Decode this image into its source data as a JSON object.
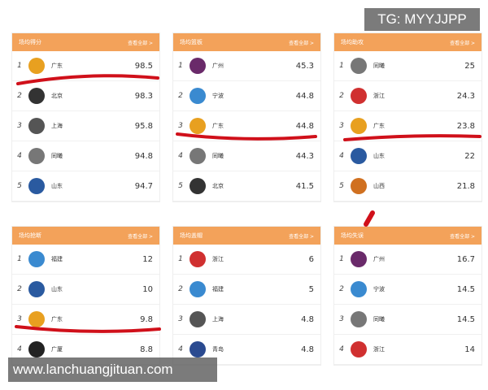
{
  "panels": [
    {
      "title": "场均得分",
      "more": "查看全部 >",
      "rows": [
        [
          "1",
          "广东",
          "98.5",
          "#e8a020"
        ],
        [
          "2",
          "北京",
          "98.3",
          "#333"
        ],
        [
          "3",
          "上海",
          "95.8",
          "#555"
        ],
        [
          "4",
          "同曦",
          "94.8",
          "#777"
        ],
        [
          "5",
          "山东",
          "94.7",
          "#2a5aa0"
        ]
      ]
    },
    {
      "title": "场均篮板",
      "more": "查看全部 >",
      "rows": [
        [
          "1",
          "广州",
          "45.3",
          "#6a2a6a"
        ],
        [
          "2",
          "宁波",
          "44.8",
          "#3a8ad0"
        ],
        [
          "3",
          "广东",
          "44.8",
          "#e8a020"
        ],
        [
          "4",
          "同曦",
          "44.3",
          "#777"
        ],
        [
          "5",
          "北京",
          "41.5",
          "#333"
        ]
      ]
    },
    {
      "title": "场均助攻",
      "more": "查看全部 >",
      "rows": [
        [
          "1",
          "同曦",
          "25",
          "#777"
        ],
        [
          "2",
          "浙江",
          "24.3",
          "#d03030"
        ],
        [
          "3",
          "广东",
          "23.8",
          "#e8a020"
        ],
        [
          "4",
          "山东",
          "22",
          "#2a5aa0"
        ],
        [
          "5",
          "山西",
          "21.8",
          "#d07020"
        ]
      ]
    },
    {
      "title": "场均抢断",
      "more": "查看全部 >",
      "rows": [
        [
          "1",
          "福建",
          "12",
          "#3a8ad0"
        ],
        [
          "2",
          "山东",
          "10",
          "#2a5aa0"
        ],
        [
          "3",
          "广东",
          "9.8",
          "#e8a020"
        ],
        [
          "4",
          "广厦",
          "8.8",
          "#222"
        ]
      ]
    },
    {
      "title": "场均盖帽",
      "more": "查看全部 >",
      "rows": [
        [
          "1",
          "浙江",
          "6",
          "#d03030"
        ],
        [
          "2",
          "福建",
          "5",
          "#3a8ad0"
        ],
        [
          "3",
          "上海",
          "4.8",
          "#555"
        ],
        [
          "4",
          "青岛",
          "4.8",
          "#2a4a90"
        ]
      ]
    },
    {
      "title": "场均失误",
      "more": "查看全部 >",
      "rows": [
        [
          "1",
          "广州",
          "16.7",
          "#6a2a6a"
        ],
        [
          "2",
          "宁波",
          "14.5",
          "#3a8ad0"
        ],
        [
          "3",
          "同曦",
          "14.5",
          "#777"
        ],
        [
          "4",
          "浙江",
          "14",
          "#d03030"
        ]
      ]
    }
  ],
  "watermark_top": "TG: MYYJJPP",
  "watermark_bottom": "www.lanchuangjituan.com",
  "accent": "#f3a25a",
  "annotation_color": "#d0101a"
}
